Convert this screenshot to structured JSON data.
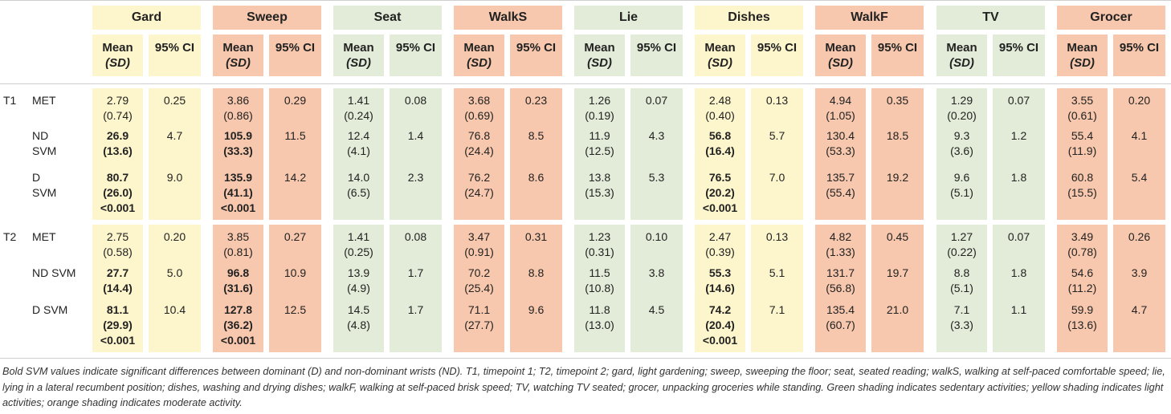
{
  "colors": {
    "light": "#fdf5cc",
    "moderate": "#f7c8ad",
    "sedentary": "#e2ecd8"
  },
  "activities": [
    {
      "name": "Gard",
      "shade": "light"
    },
    {
      "name": "Sweep",
      "shade": "moderate"
    },
    {
      "name": "Seat",
      "shade": "sedentary"
    },
    {
      "name": "WalkS",
      "shade": "moderate"
    },
    {
      "name": "Lie",
      "shade": "sedentary"
    },
    {
      "name": "Dishes",
      "shade": "light"
    },
    {
      "name": "WalkF",
      "shade": "moderate"
    },
    {
      "name": "TV",
      "shade": "sedentary"
    },
    {
      "name": "Grocer",
      "shade": "moderate"
    }
  ],
  "subheaders": {
    "mean": "Mean",
    "sd": "(SD)",
    "ci": "95% CI"
  },
  "rows": [
    {
      "time": "T1",
      "measure": [
        "MET"
      ],
      "bold": false,
      "cells": [
        [
          "2.79",
          "(0.74)",
          "0.25"
        ],
        [
          "3.86",
          "(0.86)",
          "0.29"
        ],
        [
          "1.41",
          "(0.24)",
          "0.08"
        ],
        [
          "3.68",
          "(0.69)",
          "0.23"
        ],
        [
          "1.26",
          "(0.19)",
          "0.07"
        ],
        [
          "2.48",
          "(0.40)",
          "0.13"
        ],
        [
          "4.94",
          "(1.05)",
          "0.35"
        ],
        [
          "1.29",
          "(0.20)",
          "0.07"
        ],
        [
          "3.55",
          "(0.61)",
          "0.20"
        ]
      ]
    },
    {
      "time": "",
      "measure": [
        "ND",
        "SVM"
      ],
      "bold": true,
      "cells": [
        [
          "26.9",
          "(13.6)",
          "4.7"
        ],
        [
          "105.9",
          "(33.3)",
          "11.5"
        ],
        [
          "12.4",
          "(4.1)",
          "1.4"
        ],
        [
          "76.8",
          "(24.4)",
          "8.5"
        ],
        [
          "11.9",
          "(12.5)",
          "4.3"
        ],
        [
          "56.8",
          "(16.4)",
          "5.7"
        ],
        [
          "130.4",
          "(53.3)",
          "18.5"
        ],
        [
          "9.3",
          "(3.6)",
          "1.2"
        ],
        [
          "55.4",
          "(11.9)",
          "4.1"
        ]
      ]
    },
    {
      "time": "",
      "measure": [
        "D",
        "SVM"
      ],
      "bold": true,
      "cells": [
        [
          "80.7",
          "(26.0)",
          "<0.001",
          "9.0"
        ],
        [
          "135.9",
          "(41.1)",
          "<0.001",
          "14.2"
        ],
        [
          "14.0",
          "(6.5)",
          "2.3"
        ],
        [
          "76.2",
          "(24.7)",
          "8.6"
        ],
        [
          "13.8",
          "(15.3)",
          "5.3"
        ],
        [
          "76.5",
          "(20.2)",
          "<0.001",
          "7.0"
        ],
        [
          "135.7",
          "(55.4)",
          "19.2"
        ],
        [
          "9.6",
          "(5.1)",
          "1.8"
        ],
        [
          "60.8",
          "(15.5)",
          "5.4"
        ]
      ]
    },
    {
      "time": "T2",
      "measure": [
        "MET"
      ],
      "bold": false,
      "cells": [
        [
          "2.75",
          "(0.58)",
          "0.20"
        ],
        [
          "3.85",
          "(0.81)",
          "0.27"
        ],
        [
          "1.41",
          "(0.25)",
          "0.08"
        ],
        [
          "3.47",
          "(0.91)",
          "0.31"
        ],
        [
          "1.23",
          "(0.31)",
          "0.10"
        ],
        [
          "2.47",
          "(0.39)",
          "0.13"
        ],
        [
          "4.82",
          "(1.33)",
          "0.45"
        ],
        [
          "1.27",
          "(0.22)",
          "0.07"
        ],
        [
          "3.49",
          "(0.78)",
          "0.26"
        ]
      ]
    },
    {
      "time": "",
      "measure": [
        "ND SVM"
      ],
      "bold": true,
      "cells": [
        [
          "27.7",
          "(14.4)",
          "5.0"
        ],
        [
          "96.8",
          "(31.6)",
          "10.9"
        ],
        [
          "13.9",
          "(4.9)",
          "1.7"
        ],
        [
          "70.2",
          "(25.4)",
          "8.8"
        ],
        [
          "11.5",
          "(10.8)",
          "3.8"
        ],
        [
          "55.3",
          "(14.6)",
          "5.1"
        ],
        [
          "131.7",
          "(56.8)",
          "19.7"
        ],
        [
          "8.8",
          "(5.1)",
          "1.8"
        ],
        [
          "54.6",
          "(11.2)",
          "3.9"
        ]
      ]
    },
    {
      "time": "",
      "measure": [
        "D SVM"
      ],
      "bold": true,
      "cells": [
        [
          "81.1",
          "(29.9)",
          "<0.001",
          "10.4"
        ],
        [
          "127.8",
          "(36.2)",
          "<0.001",
          "12.5"
        ],
        [
          "14.5",
          "(4.8)",
          "1.7"
        ],
        [
          "71.1",
          "(27.7)",
          "9.6"
        ],
        [
          "11.8",
          "(13.0)",
          "4.5"
        ],
        [
          "74.2",
          "(20.4)",
          "<0.001",
          "7.1"
        ],
        [
          "135.4",
          "(60.7)",
          "21.0"
        ],
        [
          "7.1",
          "(3.3)",
          "1.1"
        ],
        [
          "59.9",
          "(13.6)",
          "4.7"
        ]
      ]
    }
  ],
  "bold_activities": [
    "Gard",
    "Sweep",
    "Dishes"
  ],
  "footnote": "Bold SVM values indicate significant differences between dominant (D) and non-dominant wrists (ND). T1, timepoint 1; T2, timepoint 2; gard, light gardening; sweep, sweeping the floor; seat, seated reading; walkS, walking at self-paced comfortable speed; lie, lying in a lateral recumbent position; dishes, washing and drying dishes; walkF, walking at self-paced brisk speed; TV, watching TV seated; grocer, unpacking groceries while standing. Green shading indicates sedentary activities; yellow shading indicates light activities; orange shading indicates moderate activity."
}
